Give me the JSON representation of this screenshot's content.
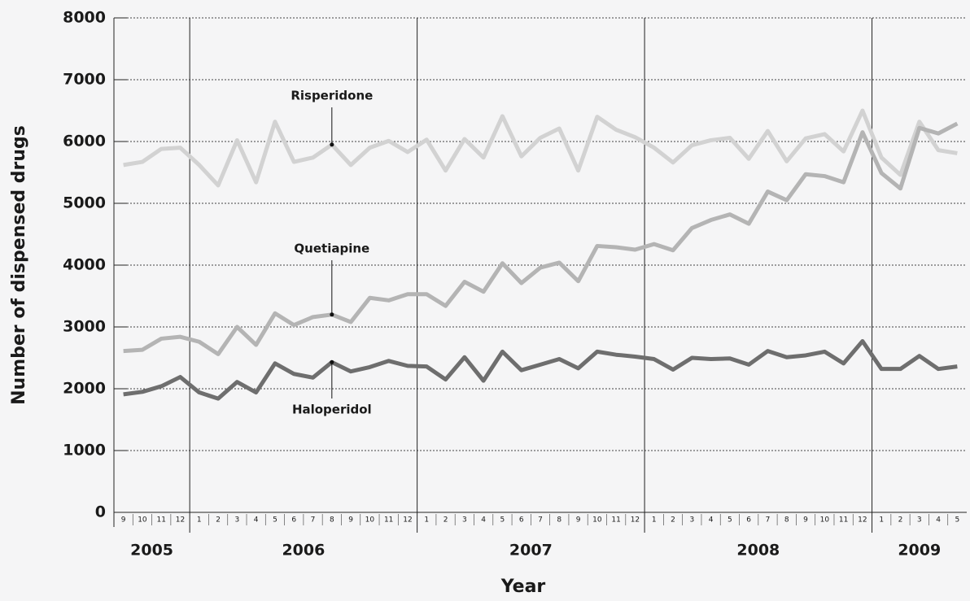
{
  "chart_data": {
    "type": "line",
    "x_label": "Year",
    "y_label": "Number of dispensed drugs",
    "categories": [
      "9",
      "10",
      "11",
      "12",
      "1",
      "2",
      "3",
      "4",
      "5",
      "6",
      "7",
      "8",
      "9",
      "10",
      "11",
      "12",
      "1",
      "2",
      "3",
      "4",
      "5",
      "6",
      "7",
      "8",
      "9",
      "10",
      "11",
      "12",
      "1",
      "2",
      "3",
      "4",
      "5",
      "6",
      "7",
      "8",
      "9",
      "10",
      "11",
      "12",
      "1",
      "2",
      "3",
      "4",
      "5"
    ],
    "years": [
      "2005",
      "2006",
      "2007",
      "2008",
      "2009"
    ],
    "series": [
      {
        "name": "Risperidone",
        "color": "#d2d2d2",
        "values": [
          5620,
          5670,
          5880,
          5900,
          5620,
          5290,
          6020,
          5340,
          6320,
          5670,
          5740,
          5950,
          5620,
          5900,
          6010,
          5830,
          6030,
          5530,
          6040,
          5740,
          6410,
          5760,
          6060,
          6210,
          5530,
          6400,
          6190,
          6070,
          5900,
          5660,
          5940,
          6020,
          6060,
          5720,
          6170,
          5680,
          6050,
          6120,
          5840,
          6500,
          5740,
          5460,
          6320,
          5860,
          5810
        ]
      },
      {
        "name": "Quetiapine",
        "color": "#b4b4b4",
        "values": [
          2610,
          2630,
          2810,
          2840,
          2760,
          2560,
          3000,
          2710,
          3220,
          3030,
          3160,
          3200,
          3080,
          3470,
          3430,
          3530,
          3530,
          3340,
          3730,
          3570,
          4030,
          3710,
          3960,
          4040,
          3740,
          4310,
          4290,
          4250,
          4340,
          4240,
          4600,
          4730,
          4820,
          4670,
          5190,
          5050,
          5470,
          5440,
          5340,
          6150,
          5490,
          5240,
          6220,
          6130,
          6290
        ]
      },
      {
        "name": "Haloperidol",
        "color": "#6e6e6e",
        "values": [
          1910,
          1950,
          2040,
          2190,
          1940,
          1840,
          2110,
          1940,
          2410,
          2240,
          2180,
          2430,
          2280,
          2350,
          2450,
          2370,
          2360,
          2150,
          2510,
          2130,
          2600,
          2300,
          2390,
          2480,
          2330,
          2600,
          2550,
          2520,
          2480,
          2310,
          2500,
          2480,
          2490,
          2390,
          2610,
          2510,
          2540,
          2600,
          2410,
          2770,
          2320,
          2320,
          2530,
          2320,
          2360
        ]
      }
    ],
    "ylim": [
      0,
      8000
    ],
    "yticks": [
      0,
      1000,
      2000,
      3000,
      4000,
      5000,
      6000,
      7000,
      8000
    ],
    "grid": true
  }
}
